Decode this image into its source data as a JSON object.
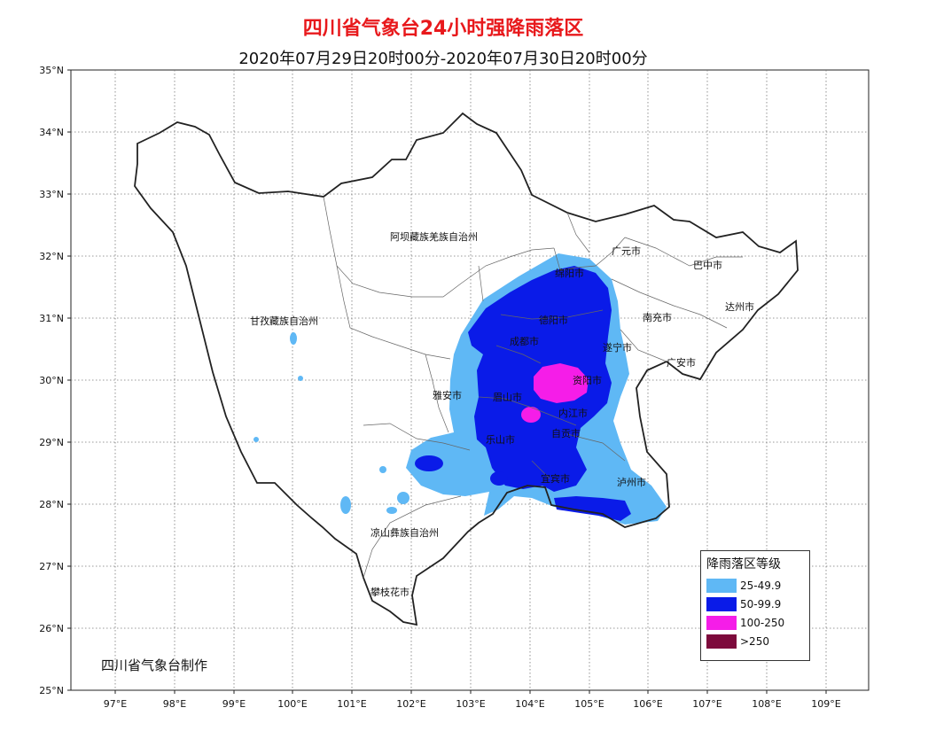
{
  "title": "四川省气象台24小时强降雨落区",
  "subtitle": "2020年07月29日20时00分-2020年07月30日20时00分",
  "maker": "四川省气象台制作",
  "axes": {
    "lat_ticks": [
      "35°N",
      "34°N",
      "33°N",
      "32°N",
      "31°N",
      "30°N",
      "29°N",
      "28°N",
      "27°N",
      "26°N",
      "25°N"
    ],
    "lon_ticks": [
      "97°E",
      "98°E",
      "99°E",
      "100°E",
      "101°E",
      "102°E",
      "103°E",
      "104°E",
      "105°E",
      "106°E",
      "107°E",
      "108°E",
      "109°E"
    ]
  },
  "places": {
    "aba": "阿坝藏族羌族自治州",
    "ganzi": "甘孜藏族自治州",
    "liangshan": "凉山彝族自治州",
    "panzhihua": "攀枝花市",
    "guangyuan": "广元市",
    "bazhong": "巴中市",
    "dazhou": "达州市",
    "nanchong": "南充市",
    "suining": "遂宁市",
    "guangan": "广安市",
    "mianyang": "绵阳市",
    "deyang": "德阳市",
    "chengdu": "成都市",
    "yaan": "雅安市",
    "meishan": "眉山市",
    "ziyang": "资阳市",
    "neijiang": "内江市",
    "zigong": "自贡市",
    "leshan": "乐山市",
    "yibin": "宜宾市",
    "luzhou": "泸州市"
  },
  "legend": {
    "title": "降雨落区等级",
    "items": [
      {
        "label": "25-49.9",
        "color": "#5fb8f5"
      },
      {
        "label": "50-99.9",
        "color": "#0a1be8"
      },
      {
        "label": "100-250",
        "color": "#f51de8"
      },
      {
        "label": ">250",
        "color": "#7d0a3c"
      }
    ]
  }
}
